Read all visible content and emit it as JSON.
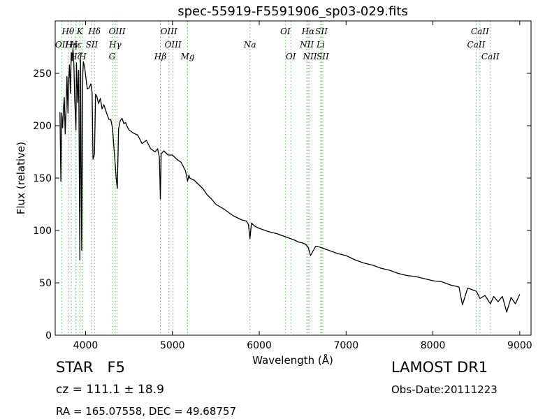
{
  "chart_data": {
    "type": "line",
    "title": "spec-55919-F5591906_sp03-029.fits",
    "xlabel": "Wavelength (Å)",
    "ylabel": "Flux (relative)",
    "xlim": [
      3650,
      9130
    ],
    "ylim": [
      0,
      300
    ],
    "xticks": [
      4000,
      5000,
      6000,
      7000,
      8000,
      9000
    ],
    "yticks": [
      0,
      50,
      100,
      150,
      200,
      250
    ],
    "grid": false,
    "line_color": "#000000",
    "marker_line_color": "#5cb85c",
    "spectrum": {
      "x": [
        3705,
        3715,
        3725,
        3735,
        3745,
        3755,
        3765,
        3775,
        3785,
        3797,
        3805,
        3815,
        3825,
        3835,
        3845,
        3855,
        3865,
        3875,
        3889,
        3895,
        3910,
        3920,
        3934,
        3942,
        3955,
        3968,
        3975,
        3990,
        4000,
        4020,
        4040,
        4060,
        4075,
        4085,
        4102,
        4115,
        4130,
        4150,
        4170,
        4190,
        4210,
        4230,
        4250,
        4270,
        4290,
        4310,
        4330,
        4340,
        4352,
        4365,
        4380,
        4400,
        4420,
        4440,
        4460,
        4480,
        4500,
        4550,
        4600,
        4650,
        4700,
        4750,
        4800,
        4830,
        4850,
        4861,
        4870,
        4900,
        4950,
        5000,
        5050,
        5100,
        5150,
        5175,
        5190,
        5200,
        5250,
        5300,
        5350,
        5400,
        5450,
        5500,
        5600,
        5700,
        5800,
        5850,
        5875,
        5893,
        5910,
        5950,
        6000,
        6100,
        6200,
        6300,
        6400,
        6450,
        6500,
        6530,
        6563,
        6590,
        6650,
        6700,
        6800,
        6900,
        7000,
        7100,
        7200,
        7300,
        7400,
        7500,
        7600,
        7700,
        7800,
        7900,
        8000,
        8100,
        8200,
        8300,
        8340,
        8400,
        8500,
        8542,
        8600,
        8662,
        8700,
        8750,
        8800,
        8850,
        8900,
        8950,
        9000
      ],
      "y": [
        213,
        147,
        212,
        198,
        216,
        227,
        192,
        215,
        247,
        212,
        244,
        258,
        231,
        270,
        262,
        274,
        259,
        224,
        196,
        260,
        222,
        253,
        72,
        262,
        81,
        250,
        261,
        255,
        248,
        235,
        236,
        240,
        232,
        168,
        173,
        230,
        228,
        221,
        226,
        216,
        220,
        215,
        210,
        206,
        206,
        198,
        175,
        165,
        150,
        140,
        197,
        205,
        207,
        202,
        203,
        199,
        196,
        193,
        191,
        183,
        186,
        178,
        175,
        178,
        170,
        130,
        173,
        176,
        172,
        172,
        168,
        165,
        157,
        147,
        153,
        150,
        148,
        144,
        140,
        134,
        130,
        125,
        120,
        114,
        110,
        109,
        106,
        92,
        107,
        104,
        102,
        99,
        97,
        94,
        91,
        89,
        88,
        87,
        84,
        76,
        85,
        84,
        81,
        78,
        76,
        72,
        69,
        67,
        64,
        62,
        59,
        57,
        56,
        54,
        52,
        51,
        48,
        46,
        29,
        45,
        42,
        35,
        38,
        30,
        37,
        32,
        37,
        22,
        36,
        30,
        39
      ]
    },
    "line_markers": [
      {
        "label": "Hθ",
        "x": 3798,
        "row": 1
      },
      {
        "label": "K",
        "x": 3934,
        "row": 1
      },
      {
        "label": "Hδ",
        "x": 4102,
        "row": 1
      },
      {
        "label": "OIII",
        "x": 4363,
        "row": 1
      },
      {
        "label": "OIII",
        "x": 4959,
        "row": 1
      },
      {
        "label": "OI",
        "x": 6300,
        "row": 1
      },
      {
        "label": "Hα",
        "x": 6563,
        "row": 1
      },
      {
        "label": "SII",
        "x": 6716,
        "row": 1
      },
      {
        "label": "CaII",
        "x": 8542,
        "row": 1
      },
      {
        "label": "OII",
        "x": 3727,
        "row": 2
      },
      {
        "label": "Hη",
        "x": 3835,
        "row": 2
      },
      {
        "label": "Hε",
        "x": 3889,
        "row": 2
      },
      {
        "label": "SII",
        "x": 4072,
        "row": 2
      },
      {
        "label": "Hγ",
        "x": 4341,
        "row": 2
      },
      {
        "label": "OIII",
        "x": 5007,
        "row": 2
      },
      {
        "label": "Na",
        "x": 5893,
        "row": 2
      },
      {
        "label": "NII",
        "x": 6548,
        "row": 2
      },
      {
        "label": "Li",
        "x": 6707,
        "row": 2
      },
      {
        "label": "CaII",
        "x": 8498,
        "row": 2
      },
      {
        "label": "Hζ",
        "x": 3889,
        "row": 3
      },
      {
        "label": "H",
        "x": 3968,
        "row": 3
      },
      {
        "label": "G",
        "x": 4305,
        "row": 3
      },
      {
        "label": "Hβ",
        "x": 4861,
        "row": 3
      },
      {
        "label": "Mg",
        "x": 5175,
        "row": 3
      },
      {
        "label": "OI",
        "x": 6364,
        "row": 3
      },
      {
        "label": "NII",
        "x": 6583,
        "row": 3
      },
      {
        "label": "SII",
        "x": 6731,
        "row": 3
      },
      {
        "label": "CaII",
        "x": 8662,
        "row": 3
      }
    ]
  },
  "info": {
    "class_line": "STAR   F5",
    "survey": "LAMOST DR1",
    "cz_line": "cz = 111.1 ± 18.9",
    "obs_date": "Obs-Date:20111223",
    "coords": "RA = 165.07558, DEC = 49.68757"
  }
}
